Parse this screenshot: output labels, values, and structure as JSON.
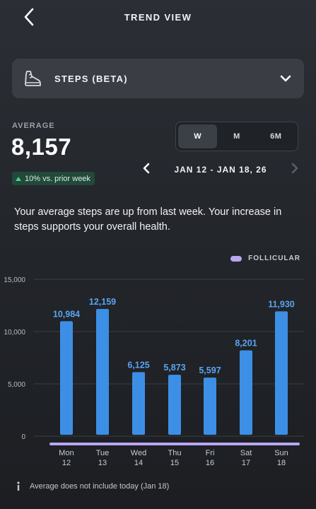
{
  "header": {
    "title": "TREND VIEW",
    "back_icon": "chevron-left-icon"
  },
  "metric_selector": {
    "label": "STEPS (BETA)",
    "icon": "shoe-icon",
    "chevron": "chevron-down-icon"
  },
  "summary": {
    "average_label": "AVERAGE",
    "average_value": "8,157",
    "change_text": "10% vs. prior week",
    "change_direction": "up"
  },
  "period": {
    "options": [
      "W",
      "M",
      "6M"
    ],
    "selected": "W"
  },
  "date_nav": {
    "range": "JAN 12 - JAN 18, 26"
  },
  "insight": "Your average steps are up from last week. Your increase in steps supports your overall health.",
  "legend": {
    "label": "FOLLICULAR",
    "color": "#b8a6f2"
  },
  "colors": {
    "bar": "#3d8fe6",
    "bar_label": "#5aa4f2",
    "grid": "#3a3e45",
    "phase": "#b8a6f2",
    "accent_up": "#49d18e"
  },
  "chart_data": {
    "type": "bar",
    "categories": [
      "Mon 12",
      "Tue 13",
      "Wed 14",
      "Thu 15",
      "Fri 16",
      "Sat 17",
      "Sun 18"
    ],
    "day_labels": [
      "Mon",
      "Tue",
      "Wed",
      "Thu",
      "Fri",
      "Sat",
      "Sun"
    ],
    "date_labels": [
      "12",
      "13",
      "14",
      "15",
      "16",
      "17",
      "18"
    ],
    "values": [
      10984,
      12159,
      6125,
      5873,
      5597,
      8201,
      11930
    ],
    "value_labels": [
      "10,984",
      "12,159",
      "6,125",
      "5,873",
      "5,597",
      "8,201",
      "11,930"
    ],
    "y_ticks": [
      0,
      5000,
      10000,
      15000
    ],
    "y_tick_labels": [
      "0",
      "5,000",
      "10,000",
      "15,000"
    ],
    "ylim": [
      0,
      15000
    ],
    "grid": true
  },
  "footnote": "Average does not include today (Jan 18)"
}
